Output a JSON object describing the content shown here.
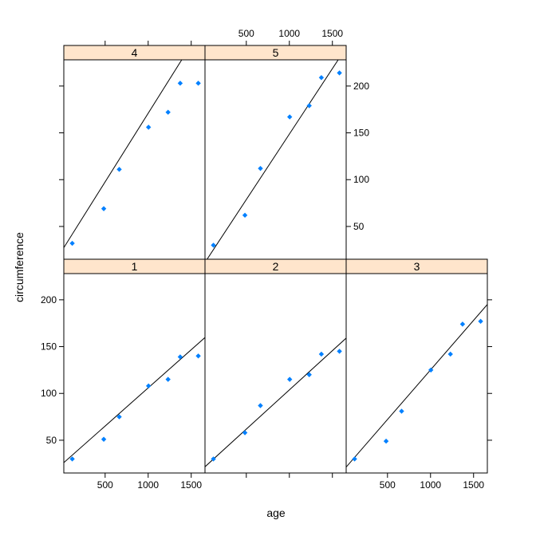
{
  "chart_data": {
    "type": "scatter",
    "xlabel": "age",
    "ylabel": "circumference",
    "xlim": [
      20,
      1660
    ],
    "ylim": [
      15,
      228
    ],
    "x_ticks": [
      500,
      1000,
      1500
    ],
    "y_ticks": [
      50,
      100,
      150,
      200
    ],
    "colors": {
      "points": "#0080ff",
      "strip_fill": "#ffe5cc",
      "lines": "#000000"
    },
    "panels": [
      {
        "label": "4",
        "x": [
          118,
          484,
          664,
          1004,
          1231,
          1372,
          1582
        ],
        "y": [
          32,
          69,
          111,
          156,
          172,
          203,
          203
        ],
        "fit": {
          "intercept": 24.4,
          "slope": 0.1465
        }
      },
      {
        "label": "5",
        "x": [
          118,
          484,
          664,
          1004,
          1231,
          1372,
          1582
        ],
        "y": [
          30,
          62,
          112,
          167,
          179,
          209,
          214
        ],
        "fit": {
          "intercept": 8.76,
          "slope": 0.1399
        }
      },
      {
        "label": "1",
        "x": [
          118,
          484,
          664,
          1004,
          1231,
          1372,
          1582
        ],
        "y": [
          30,
          51,
          75,
          108,
          115,
          139,
          140
        ],
        "fit": {
          "intercept": 24.4,
          "slope": 0.0815
        }
      },
      {
        "label": "2",
        "x": [
          118,
          484,
          664,
          1004,
          1231,
          1372,
          1582
        ],
        "y": [
          30,
          58,
          87,
          115,
          120,
          142,
          145
        ],
        "fit": {
          "intercept": 19.96,
          "slope": 0.0838
        }
      },
      {
        "label": "3",
        "x": [
          118,
          484,
          664,
          1004,
          1231,
          1372,
          1582
        ],
        "y": [
          30,
          49,
          81,
          125,
          142,
          174,
          177
        ],
        "fit": {
          "intercept": 19.2,
          "slope": 0.1059
        }
      }
    ]
  }
}
